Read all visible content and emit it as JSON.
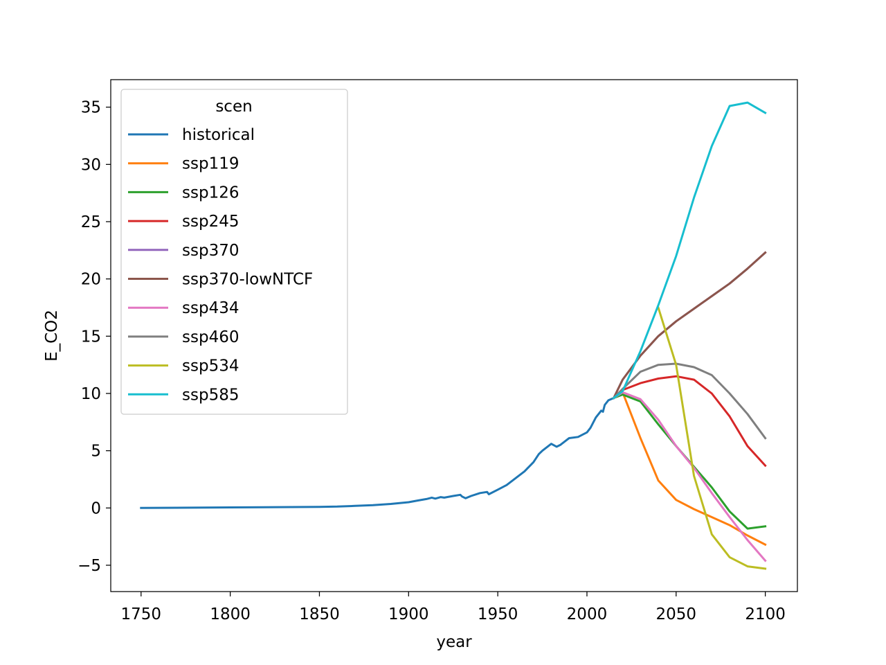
{
  "chart_data": {
    "type": "line",
    "xlabel": "year",
    "ylabel": "E_CO2",
    "xlim": [
      1733,
      2118
    ],
    "ylim": [
      -7.3,
      37.4
    ],
    "xticks": [
      1750,
      1800,
      1850,
      1900,
      1950,
      2000,
      2050,
      2100
    ],
    "yticks": [
      -5,
      0,
      5,
      10,
      15,
      20,
      25,
      30,
      35
    ],
    "ytick_labels": [
      "−5",
      "0",
      "5",
      "10",
      "15",
      "20",
      "25",
      "30",
      "35"
    ],
    "grid": false,
    "legend": {
      "title": "scen",
      "placement": "top-left"
    },
    "series": [
      {
        "name": "historical",
        "color": "#1f77b4",
        "x": [
          1750,
          1800,
          1850,
          1860,
          1870,
          1880,
          1890,
          1900,
          1905,
          1910,
          1913,
          1915,
          1918,
          1920,
          1925,
          1929,
          1930,
          1932,
          1935,
          1940,
          1944,
          1945,
          1950,
          1955,
          1960,
          1965,
          1970,
          1973,
          1975,
          1980,
          1983,
          1985,
          1990,
          1995,
          2000,
          2002,
          2005,
          2008,
          2009,
          2010,
          2012,
          2015
        ],
        "y": [
          0,
          0.05,
          0.1,
          0.12,
          0.18,
          0.25,
          0.35,
          0.5,
          0.65,
          0.78,
          0.9,
          0.82,
          0.95,
          0.9,
          1.05,
          1.15,
          1.0,
          0.85,
          1.05,
          1.3,
          1.4,
          1.2,
          1.6,
          2.0,
          2.6,
          3.2,
          4.0,
          4.7,
          5.0,
          5.6,
          5.35,
          5.5,
          6.1,
          6.2,
          6.6,
          7.0,
          7.9,
          8.5,
          8.4,
          9.0,
          9.4,
          9.6
        ]
      },
      {
        "name": "ssp119",
        "color": "#ff7f0e",
        "x": [
          2015,
          2020,
          2030,
          2040,
          2050,
          2060,
          2070,
          2080,
          2090,
          2100
        ],
        "y": [
          9.6,
          10.1,
          6.1,
          2.4,
          0.7,
          -0.1,
          -0.8,
          -1.5,
          -2.4,
          -3.2
        ]
      },
      {
        "name": "ssp126",
        "color": "#2ca02c",
        "x": [
          2015,
          2020,
          2030,
          2040,
          2050,
          2060,
          2070,
          2080,
          2090,
          2100
        ],
        "y": [
          9.6,
          9.9,
          9.3,
          7.3,
          5.4,
          3.6,
          1.8,
          -0.3,
          -1.8,
          -1.6
        ]
      },
      {
        "name": "ssp245",
        "color": "#d62728",
        "x": [
          2015,
          2020,
          2030,
          2040,
          2050,
          2060,
          2070,
          2080,
          2090,
          2100
        ],
        "y": [
          9.6,
          10.3,
          10.9,
          11.3,
          11.5,
          11.2,
          10.0,
          8.0,
          5.4,
          3.7
        ]
      },
      {
        "name": "ssp370",
        "color": "#9467bd",
        "x": [
          2015,
          2020,
          2030,
          2040,
          2050,
          2060,
          2070,
          2080,
          2090,
          2100
        ],
        "y": [
          9.6,
          11.2,
          13.3,
          15.0,
          16.3,
          17.4,
          18.5,
          19.6,
          20.9,
          22.3
        ]
      },
      {
        "name": "ssp370-lowNTCF",
        "color": "#8c564b",
        "x": [
          2015,
          2020,
          2030,
          2040,
          2050,
          2060,
          2070,
          2080,
          2090,
          2100
        ],
        "y": [
          9.6,
          11.2,
          13.3,
          15.0,
          16.3,
          17.4,
          18.5,
          19.6,
          20.9,
          22.3
        ]
      },
      {
        "name": "ssp434",
        "color": "#e377c2",
        "x": [
          2015,
          2020,
          2030,
          2040,
          2050,
          2060,
          2070,
          2080,
          2090,
          2100
        ],
        "y": [
          9.6,
          10.1,
          9.5,
          7.7,
          5.4,
          3.5,
          1.3,
          -0.8,
          -2.8,
          -4.6
        ]
      },
      {
        "name": "ssp460",
        "color": "#7f7f7f",
        "x": [
          2015,
          2020,
          2030,
          2040,
          2050,
          2060,
          2070,
          2080,
          2090,
          2100
        ],
        "y": [
          9.6,
          10.4,
          11.9,
          12.5,
          12.6,
          12.3,
          11.6,
          10.0,
          8.2,
          6.1
        ]
      },
      {
        "name": "ssp534",
        "color": "#bcbd22",
        "x": [
          2040,
          2050,
          2060,
          2070,
          2080,
          2090,
          2100
        ],
        "y": [
          17.5,
          12.5,
          2.8,
          -2.3,
          -4.3,
          -5.1,
          -5.3
        ]
      },
      {
        "name": "ssp585",
        "color": "#17becf",
        "x": [
          2015,
          2020,
          2030,
          2040,
          2050,
          2060,
          2070,
          2080,
          2090,
          2100
        ],
        "y": [
          9.6,
          10.2,
          13.7,
          17.7,
          22.0,
          27.1,
          31.6,
          35.1,
          35.4,
          34.5
        ]
      }
    ]
  }
}
